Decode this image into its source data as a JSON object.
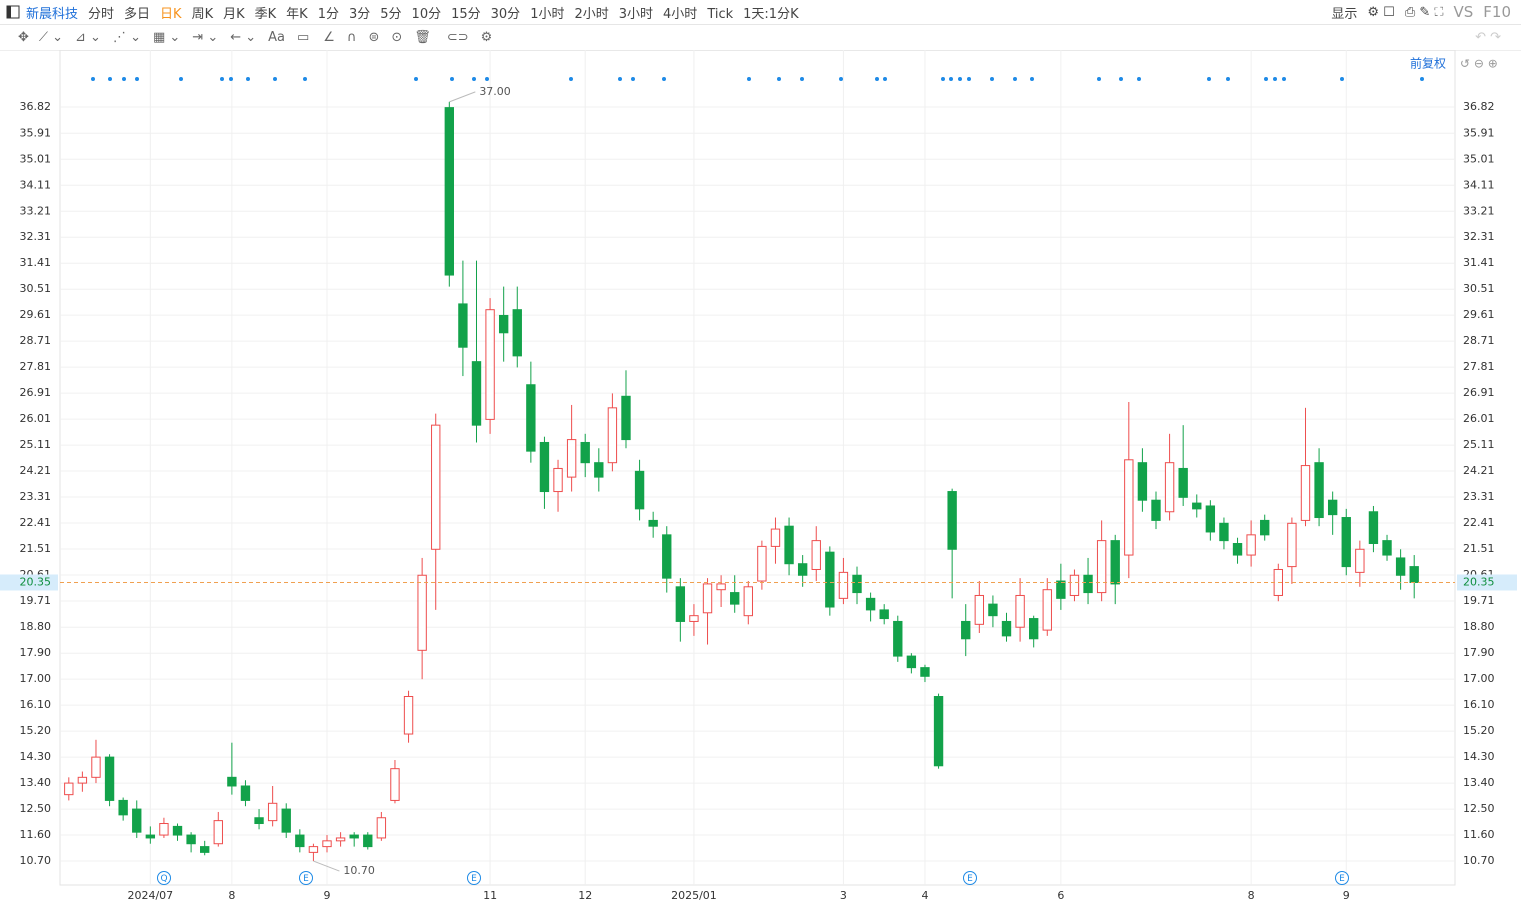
{
  "toolbar": {
    "symbol": "新晨科技",
    "periods": [
      "分时",
      "多日",
      "日K",
      "周K",
      "月K",
      "季K",
      "年K",
      "1分",
      "3分",
      "5分",
      "10分",
      "15分",
      "30分",
      "1小时",
      "2小时",
      "3小时",
      "4小时",
      "Tick"
    ],
    "active_period": 2,
    "interval": "1天:1分K",
    "display": "显示",
    "vs": "VS",
    "f10": "F10",
    "text_tool": "Aa"
  },
  "chart_data": {
    "type": "candlestick",
    "adjust": "前复权",
    "categories": [
      null,
      null,
      null,
      null,
      null,
      null,
      "2024/07",
      null,
      null,
      null,
      null,
      null,
      "8",
      null,
      null,
      null,
      null,
      null,
      null,
      "9",
      null,
      null,
      null,
      null,
      null,
      null,
      null,
      null,
      null,
      null,
      null,
      "11",
      null,
      null,
      null,
      null,
      null,
      null,
      "12",
      null,
      null,
      null,
      null,
      null,
      null,
      null,
      "2025/01",
      null,
      null,
      null,
      null,
      null,
      null,
      null,
      null,
      null,
      null,
      "3",
      null,
      null,
      null,
      null,
      null,
      "4",
      null,
      null,
      null,
      null,
      null,
      null,
      null,
      null,
      null,
      "6",
      null,
      null,
      null,
      null,
      null,
      null,
      null,
      null,
      null,
      null,
      null,
      null,
      null,
      "8",
      null,
      null,
      null,
      null,
      null,
      null,
      "9",
      null,
      null,
      null,
      null,
      null
    ],
    "open": [
      13.0,
      13.4,
      13.6,
      14.3,
      12.8,
      12.5,
      11.6,
      11.6,
      11.9,
      11.6,
      11.2,
      11.3,
      13.6,
      13.3,
      12.2,
      12.1,
      12.5,
      11.6,
      11.0,
      11.2,
      11.4,
      11.6,
      11.6,
      11.5,
      12.8,
      15.1,
      18.0,
      21.5,
      36.8,
      30.0,
      28.0,
      26.0,
      29.6,
      29.8,
      27.2,
      25.2,
      23.5,
      24.0,
      25.2,
      24.5,
      24.5,
      26.8,
      24.2,
      22.5,
      22.0,
      20.2,
      19.0,
      19.3,
      20.1,
      20.0,
      19.2,
      20.4,
      21.6,
      22.3,
      21.0,
      20.8,
      21.4,
      19.8,
      20.6,
      19.8,
      19.4,
      19.0,
      17.8,
      17.4,
      16.4,
      23.5,
      19.0,
      18.9,
      19.6,
      19.0,
      18.8,
      19.1,
      18.7,
      20.4,
      19.9,
      20.6,
      20.0,
      21.8,
      21.3,
      24.5,
      23.2,
      22.8,
      24.3,
      23.1,
      23.0,
      22.4,
      21.7,
      21.3,
      22.5,
      19.9,
      20.9,
      22.5,
      24.5,
      23.2,
      22.6,
      20.7,
      22.8,
      21.8,
      21.2,
      20.9
    ],
    "high": [
      13.6,
      13.8,
      14.9,
      14.4,
      12.9,
      12.8,
      11.9,
      12.2,
      12.0,
      11.7,
      11.4,
      12.4,
      14.8,
      13.5,
      12.5,
      13.3,
      12.7,
      11.8,
      11.3,
      11.6,
      11.7,
      11.7,
      11.7,
      12.4,
      14.2,
      16.6,
      21.2,
      26.2,
      37.0,
      31.5,
      31.5,
      30.2,
      30.6,
      30.6,
      28.0,
      25.4,
      24.6,
      26.5,
      25.5,
      25.0,
      26.9,
      27.7,
      24.6,
      22.8,
      22.3,
      20.5,
      19.6,
      20.5,
      20.6,
      20.6,
      20.4,
      21.8,
      22.6,
      22.6,
      21.3,
      22.3,
      21.6,
      21.2,
      20.9,
      20.0,
      19.6,
      19.2,
      17.9,
      17.5,
      16.5,
      23.6,
      19.6,
      20.4,
      19.9,
      19.3,
      20.5,
      19.2,
      20.5,
      21.0,
      20.8,
      21.2,
      22.5,
      22.0,
      26.6,
      25.0,
      23.5,
      25.5,
      25.8,
      23.4,
      23.2,
      22.6,
      21.9,
      22.5,
      22.7,
      21.0,
      22.6,
      26.4,
      25.0,
      23.5,
      22.9,
      21.8,
      23.0,
      22.0,
      21.5,
      21.3
    ],
    "low": [
      12.8,
      13.1,
      13.4,
      12.6,
      12.1,
      11.5,
      11.3,
      11.5,
      11.4,
      11.0,
      10.9,
      11.2,
      13.0,
      12.6,
      11.8,
      11.9,
      11.5,
      11.0,
      10.7,
      11.0,
      11.2,
      11.2,
      11.1,
      11.4,
      12.7,
      14.8,
      17.0,
      19.4,
      30.6,
      27.5,
      25.2,
      25.5,
      28.0,
      27.8,
      24.5,
      22.9,
      22.8,
      23.5,
      24.0,
      23.5,
      24.2,
      25.0,
      22.5,
      21.9,
      20.0,
      18.3,
      18.5,
      18.2,
      19.5,
      19.3,
      18.9,
      20.1,
      21.0,
      20.6,
      20.2,
      20.4,
      19.2,
      19.6,
      19.6,
      19.0,
      18.9,
      17.6,
      17.2,
      16.9,
      13.9,
      19.8,
      17.8,
      18.6,
      18.8,
      18.3,
      18.3,
      18.1,
      18.5,
      19.4,
      19.7,
      19.6,
      19.7,
      19.6,
      20.5,
      22.8,
      22.2,
      22.5,
      23.0,
      22.6,
      21.8,
      21.5,
      21.0,
      20.9,
      21.8,
      19.7,
      20.3,
      22.3,
      22.3,
      22.0,
      20.6,
      20.2,
      21.4,
      21.1,
      20.1,
      19.8
    ],
    "close": [
      13.4,
      13.6,
      14.3,
      12.8,
      12.3,
      11.7,
      11.5,
      12.0,
      11.6,
      11.3,
      11.0,
      12.1,
      13.3,
      12.8,
      12.0,
      12.7,
      11.7,
      11.2,
      11.2,
      11.4,
      11.5,
      11.5,
      11.2,
      12.2,
      13.9,
      16.4,
      20.6,
      25.8,
      31.0,
      28.5,
      25.8,
      29.8,
      29.0,
      28.2,
      24.9,
      23.5,
      24.3,
      25.3,
      24.5,
      24.0,
      26.4,
      25.3,
      22.9,
      22.3,
      20.5,
      19.0,
      19.2,
      20.3,
      20.3,
      19.6,
      20.2,
      21.6,
      22.2,
      21.0,
      20.6,
      21.8,
      19.5,
      20.7,
      20.0,
      19.4,
      19.1,
      17.8,
      17.4,
      17.1,
      14.0,
      21.5,
      18.4,
      19.9,
      19.2,
      18.5,
      19.9,
      18.4,
      20.1,
      19.8,
      20.6,
      20.0,
      21.8,
      20.3,
      24.6,
      23.2,
      22.5,
      24.5,
      23.3,
      22.9,
      22.1,
      21.8,
      21.3,
      22.0,
      22.0,
      20.8,
      22.4,
      24.4,
      22.6,
      22.7,
      20.9,
      21.5,
      21.7,
      21.3,
      20.6,
      20.35
    ],
    "up_color": "#ee4d4d",
    "down_color": "#12a24a",
    "ylim": [
      9.87,
      37.93
    ],
    "yticks": [
      {
        "value": 10.7,
        "label": "10.70"
      },
      {
        "value": 11.6,
        "label": "11.60"
      },
      {
        "value": 12.5,
        "label": "12.50"
      },
      {
        "value": 13.4,
        "label": "13.40"
      },
      {
        "value": 14.3,
        "label": "14.30"
      },
      {
        "value": 15.2,
        "label": "15.20"
      },
      {
        "value": 16.1,
        "label": "16.10"
      },
      {
        "value": 17,
        "label": "17.00"
      },
      {
        "value": 17.9,
        "label": "17.90"
      },
      {
        "value": 18.8,
        "label": "18.80"
      },
      19.71,
      {
        "value": 20.61,
        "label": "20.61"
      },
      21.51,
      22.41,
      23.31,
      24.21,
      25.11,
      26.01,
      26.91,
      27.81,
      28.71,
      29.61,
      30.51,
      31.41,
      32.31,
      33.21,
      34.11,
      35.01,
      35.91,
      36.82
    ],
    "grid": true,
    "last_price": 20.35,
    "high_label": {
      "value": 37,
      "label": "37.00"
    },
    "low_label": {
      "value": 10.7,
      "label": "10.70"
    },
    "event_labels": [
      "Q",
      "E",
      "E",
      "E",
      "E"
    ]
  }
}
